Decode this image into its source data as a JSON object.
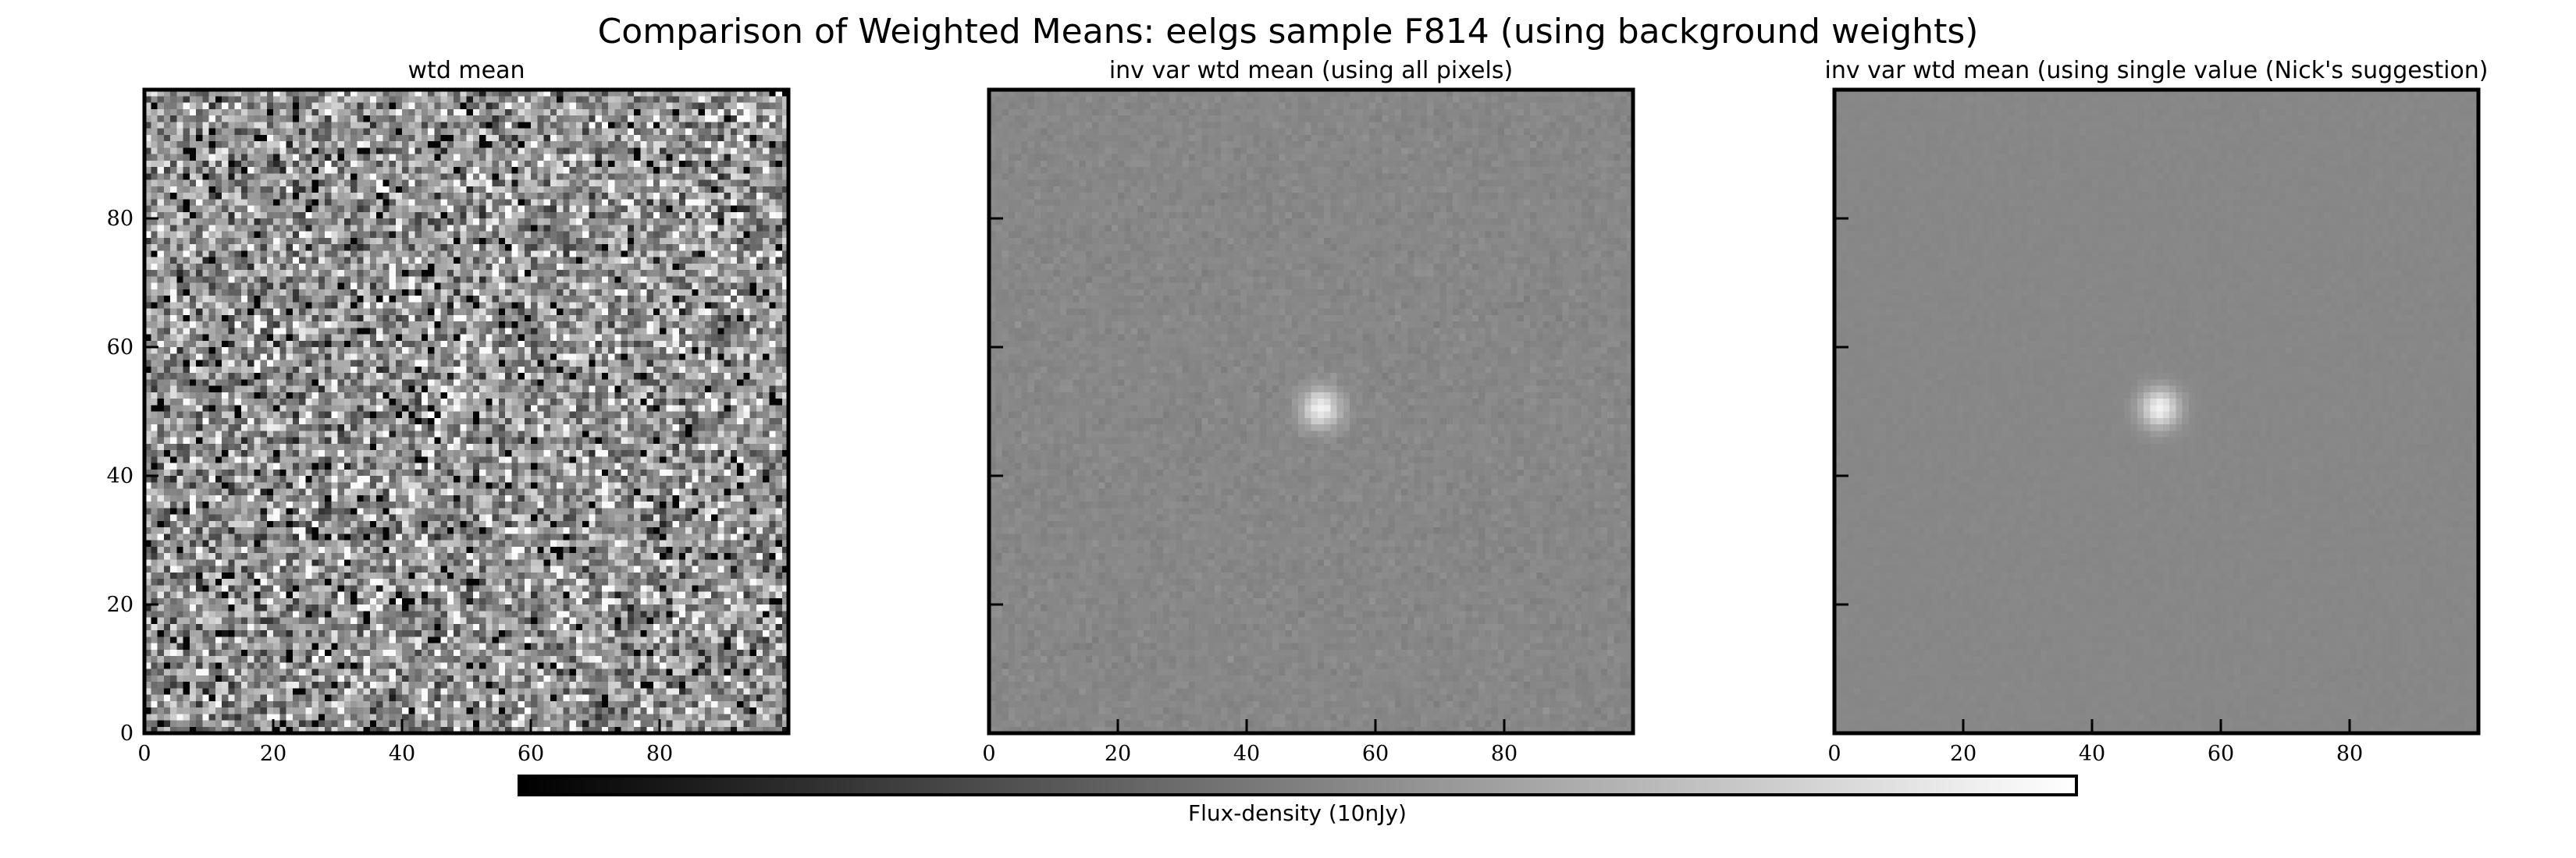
{
  "figure": {
    "title": "Comparison of Weighted Means: eelgs sample F814 (using background weights)"
  },
  "chart_data": [
    {
      "type": "heatmap",
      "title": "wtd mean",
      "xlabel": "",
      "ylabel": "",
      "xlim": [
        0,
        100
      ],
      "ylim": [
        0,
        100
      ],
      "grid": 100,
      "xticks": [
        0,
        20,
        40,
        60,
        80
      ],
      "yticks": [
        0,
        20,
        40,
        60,
        80
      ],
      "show_ytick_labels": true,
      "noise_level": "high",
      "source": {
        "x": 50,
        "y": 50,
        "relative_peak": 0.35
      },
      "colormap": "gray"
    },
    {
      "type": "heatmap",
      "title": "inv var wtd mean (using all pixels)",
      "xlabel": "",
      "ylabel": "",
      "xlim": [
        0,
        100
      ],
      "ylim": [
        0,
        100
      ],
      "grid": 100,
      "xticks": [
        0,
        20,
        40,
        60,
        80
      ],
      "yticks": [
        0,
        20,
        40,
        60,
        80
      ],
      "show_ytick_labels": false,
      "noise_level": "low",
      "source": {
        "x": 51,
        "y": 50,
        "relative_peak": 1.0
      },
      "colormap": "gray"
    },
    {
      "type": "heatmap",
      "title": "inv var wtd mean (using single value (Nick's suggestion)",
      "xlabel": "",
      "ylabel": "",
      "xlim": [
        0,
        100
      ],
      "ylim": [
        0,
        100
      ],
      "grid": 100,
      "xticks": [
        0,
        20,
        40,
        60,
        80
      ],
      "yticks": [
        0,
        20,
        40,
        60,
        80
      ],
      "show_ytick_labels": false,
      "noise_level": "very low",
      "source": {
        "x": 50,
        "y": 50,
        "relative_peak": 1.0
      },
      "colormap": "gray"
    }
  ],
  "colorbar": {
    "label": "Flux-density (10nJy)",
    "colormap": "gray"
  }
}
